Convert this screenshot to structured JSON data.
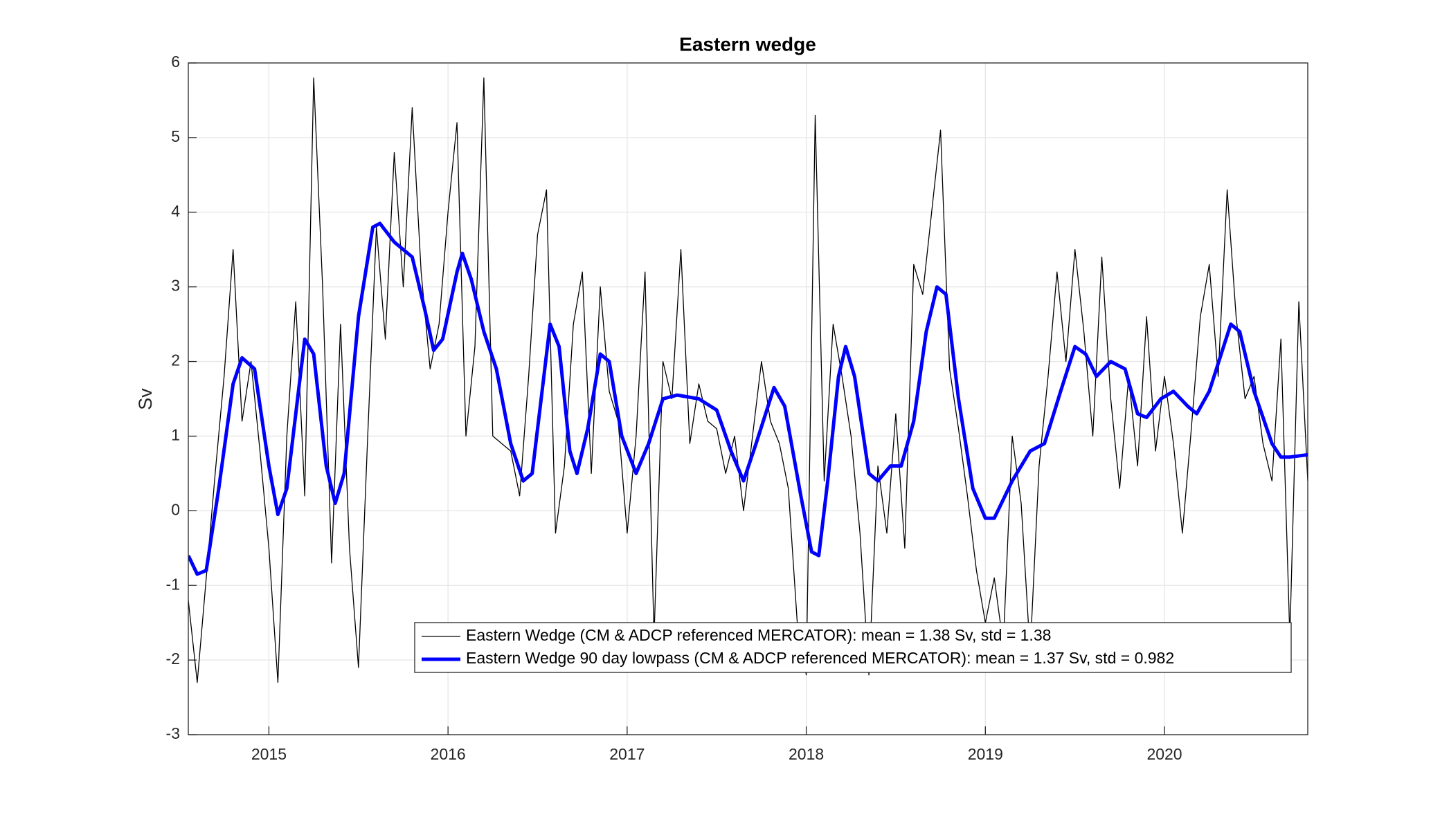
{
  "chart_data": {
    "type": "line",
    "title": "Eastern wedge",
    "y_label": "Sv",
    "xlim": [
      2014.55,
      2020.8
    ],
    "xticks": [
      2015,
      2016,
      2017,
      2018,
      2019,
      2020
    ],
    "ylim": [
      -3,
      6
    ],
    "yticks": [
      -3,
      -2,
      -1,
      0,
      1,
      2,
      3,
      4,
      5,
      6
    ],
    "grid": true,
    "legend_position": "lower right",
    "series": [
      {
        "name": "Eastern Wedge (CM & ADCP referenced MERCATOR): mean = 1.38 Sv, std = 1.38",
        "color": "#000000",
        "line_width": 1.3,
        "x": [
          2014.55,
          2014.6,
          2014.65,
          2014.7,
          2014.75,
          2014.8,
          2014.85,
          2014.9,
          2014.95,
          2015,
          2015.05,
          2015.1,
          2015.15,
          2015.2,
          2015.25,
          2015.3,
          2015.35,
          2015.4,
          2015.45,
          2015.5,
          2015.55,
          2015.6,
          2015.65,
          2015.7,
          2015.75,
          2015.8,
          2015.85,
          2015.9,
          2015.95,
          2016,
          2016.05,
          2016.1,
          2016.15,
          2016.2,
          2016.25,
          2016.3,
          2016.35,
          2016.4,
          2016.45,
          2016.5,
          2016.55,
          2016.6,
          2016.65,
          2016.7,
          2016.75,
          2016.8,
          2016.85,
          2016.9,
          2016.95,
          2017,
          2017.05,
          2017.1,
          2017.15,
          2017.2,
          2017.25,
          2017.3,
          2017.35,
          2017.4,
          2017.45,
          2017.5,
          2017.55,
          2017.6,
          2017.65,
          2017.7,
          2017.75,
          2017.8,
          2017.85,
          2017.9,
          2017.95,
          2018,
          2018.05,
          2018.1,
          2018.15,
          2018.2,
          2018.25,
          2018.3,
          2018.35,
          2018.4,
          2018.45,
          2018.5,
          2018.55,
          2018.6,
          2018.65,
          2018.7,
          2018.75,
          2018.8,
          2018.85,
          2018.9,
          2018.95,
          2019,
          2019.05,
          2019.1,
          2019.15,
          2019.2,
          2019.25,
          2019.3,
          2019.35,
          2019.4,
          2019.45,
          2019.5,
          2019.55,
          2019.6,
          2019.65,
          2019.7,
          2019.75,
          2019.8,
          2019.85,
          2019.9,
          2019.95,
          2020,
          2020.05,
          2020.1,
          2020.15,
          2020.2,
          2020.25,
          2020.3,
          2020.35,
          2020.4,
          2020.45,
          2020.5,
          2020.55,
          2020.6,
          2020.65,
          2020.7,
          2020.75,
          2020.8
        ],
        "values": [
          -1.2,
          -2.3,
          -0.9,
          0.5,
          1.8,
          3.5,
          1.2,
          2.0,
          0.8,
          -0.5,
          -2.3,
          1.0,
          2.8,
          0.2,
          5.8,
          3.0,
          -0.7,
          2.5,
          -0.5,
          -2.1,
          0.9,
          3.8,
          2.3,
          4.8,
          3.0,
          5.4,
          3.2,
          1.9,
          2.5,
          4.0,
          5.2,
          1.0,
          2.2,
          5.8,
          1.0,
          0.9,
          0.8,
          0.2,
          1.8,
          3.7,
          4.3,
          -0.3,
          0.6,
          2.5,
          3.2,
          0.5,
          3.0,
          1.6,
          1.2,
          -0.3,
          1.0,
          3.2,
          -1.7,
          2.0,
          1.5,
          3.5,
          0.9,
          1.7,
          1.2,
          1.1,
          0.5,
          1.0,
          0.0,
          1.0,
          2.0,
          1.2,
          0.9,
          0.3,
          -1.5,
          -2.2,
          5.3,
          0.4,
          2.5,
          1.8,
          1.0,
          -0.3,
          -2.2,
          0.6,
          -0.3,
          1.3,
          -0.5,
          3.3,
          2.9,
          4.0,
          5.1,
          1.9,
          1.1,
          0.2,
          -0.8,
          -1.5,
          -0.9,
          -1.8,
          1.0,
          0.1,
          -1.9,
          0.6,
          1.8,
          3.2,
          2.0,
          3.5,
          2.4,
          1.0,
          3.4,
          1.5,
          0.3,
          1.8,
          0.6,
          2.6,
          0.8,
          1.8,
          0.9,
          -0.3,
          1.1,
          2.6,
          3.3,
          1.8,
          4.3,
          2.6,
          1.5,
          1.8,
          0.9,
          0.4,
          2.3,
          -1.7,
          2.8,
          0.4
        ]
      },
      {
        "name": "Eastern Wedge 90 day lowpass (CM & ADCP referenced MERCATOR): mean = 1.37 Sv, std = 0.982",
        "color": "#0000ff",
        "line_width": 5,
        "x": [
          2014.55,
          2014.6,
          2014.65,
          2014.72,
          2014.8,
          2014.85,
          2014.92,
          2015,
          2015.05,
          2015.1,
          2015.17,
          2015.2,
          2015.25,
          2015.32,
          2015.37,
          2015.42,
          2015.5,
          2015.58,
          2015.62,
          2015.7,
          2015.8,
          2015.87,
          2015.92,
          2015.97,
          2016.05,
          2016.08,
          2016.13,
          2016.2,
          2016.27,
          2016.35,
          2016.42,
          2016.47,
          2016.52,
          2016.57,
          2016.62,
          2016.68,
          2016.72,
          2016.78,
          2016.85,
          2016.9,
          2016.97,
          2017.05,
          2017.12,
          2017.2,
          2017.28,
          2017.4,
          2017.5,
          2017.58,
          2017.65,
          2017.72,
          2017.82,
          2017.88,
          2017.97,
          2018.03,
          2018.07,
          2018.12,
          2018.18,
          2018.22,
          2018.27,
          2018.35,
          2018.4,
          2018.47,
          2018.53,
          2018.6,
          2018.67,
          2018.73,
          2018.78,
          2018.85,
          2018.93,
          2019,
          2019.05,
          2019.15,
          2019.25,
          2019.33,
          2019.42,
          2019.5,
          2019.56,
          2019.62,
          2019.7,
          2019.78,
          2019.85,
          2019.9,
          2019.98,
          2020.05,
          2020.13,
          2020.18,
          2020.25,
          2020.33,
          2020.37,
          2020.42,
          2020.5,
          2020.6,
          2020.65,
          2020.7,
          2020.8
        ],
        "values": [
          -0.6,
          -0.85,
          -0.8,
          0.3,
          1.7,
          2.05,
          1.9,
          0.6,
          -0.05,
          0.3,
          1.7,
          2.3,
          2.1,
          0.6,
          0.1,
          0.5,
          2.6,
          3.8,
          3.85,
          3.6,
          3.4,
          2.7,
          2.15,
          2.3,
          3.2,
          3.45,
          3.1,
          2.4,
          1.9,
          0.9,
          0.4,
          0.5,
          1.5,
          2.5,
          2.2,
          0.8,
          0.5,
          1.1,
          2.1,
          2.0,
          1.0,
          0.5,
          0.9,
          1.5,
          1.55,
          1.5,
          1.35,
          0.8,
          0.4,
          0.9,
          1.65,
          1.4,
          0.2,
          -0.55,
          -0.6,
          0.4,
          1.8,
          2.2,
          1.8,
          0.5,
          0.4,
          0.6,
          0.6,
          1.2,
          2.4,
          3.0,
          2.9,
          1.5,
          0.3,
          -0.1,
          -0.1,
          0.4,
          0.8,
          0.9,
          1.6,
          2.2,
          2.1,
          1.8,
          2.0,
          1.9,
          1.3,
          1.25,
          1.5,
          1.6,
          1.4,
          1.3,
          1.6,
          2.2,
          2.5,
          2.4,
          1.6,
          0.9,
          0.72,
          0.72,
          0.75
        ]
      }
    ]
  }
}
